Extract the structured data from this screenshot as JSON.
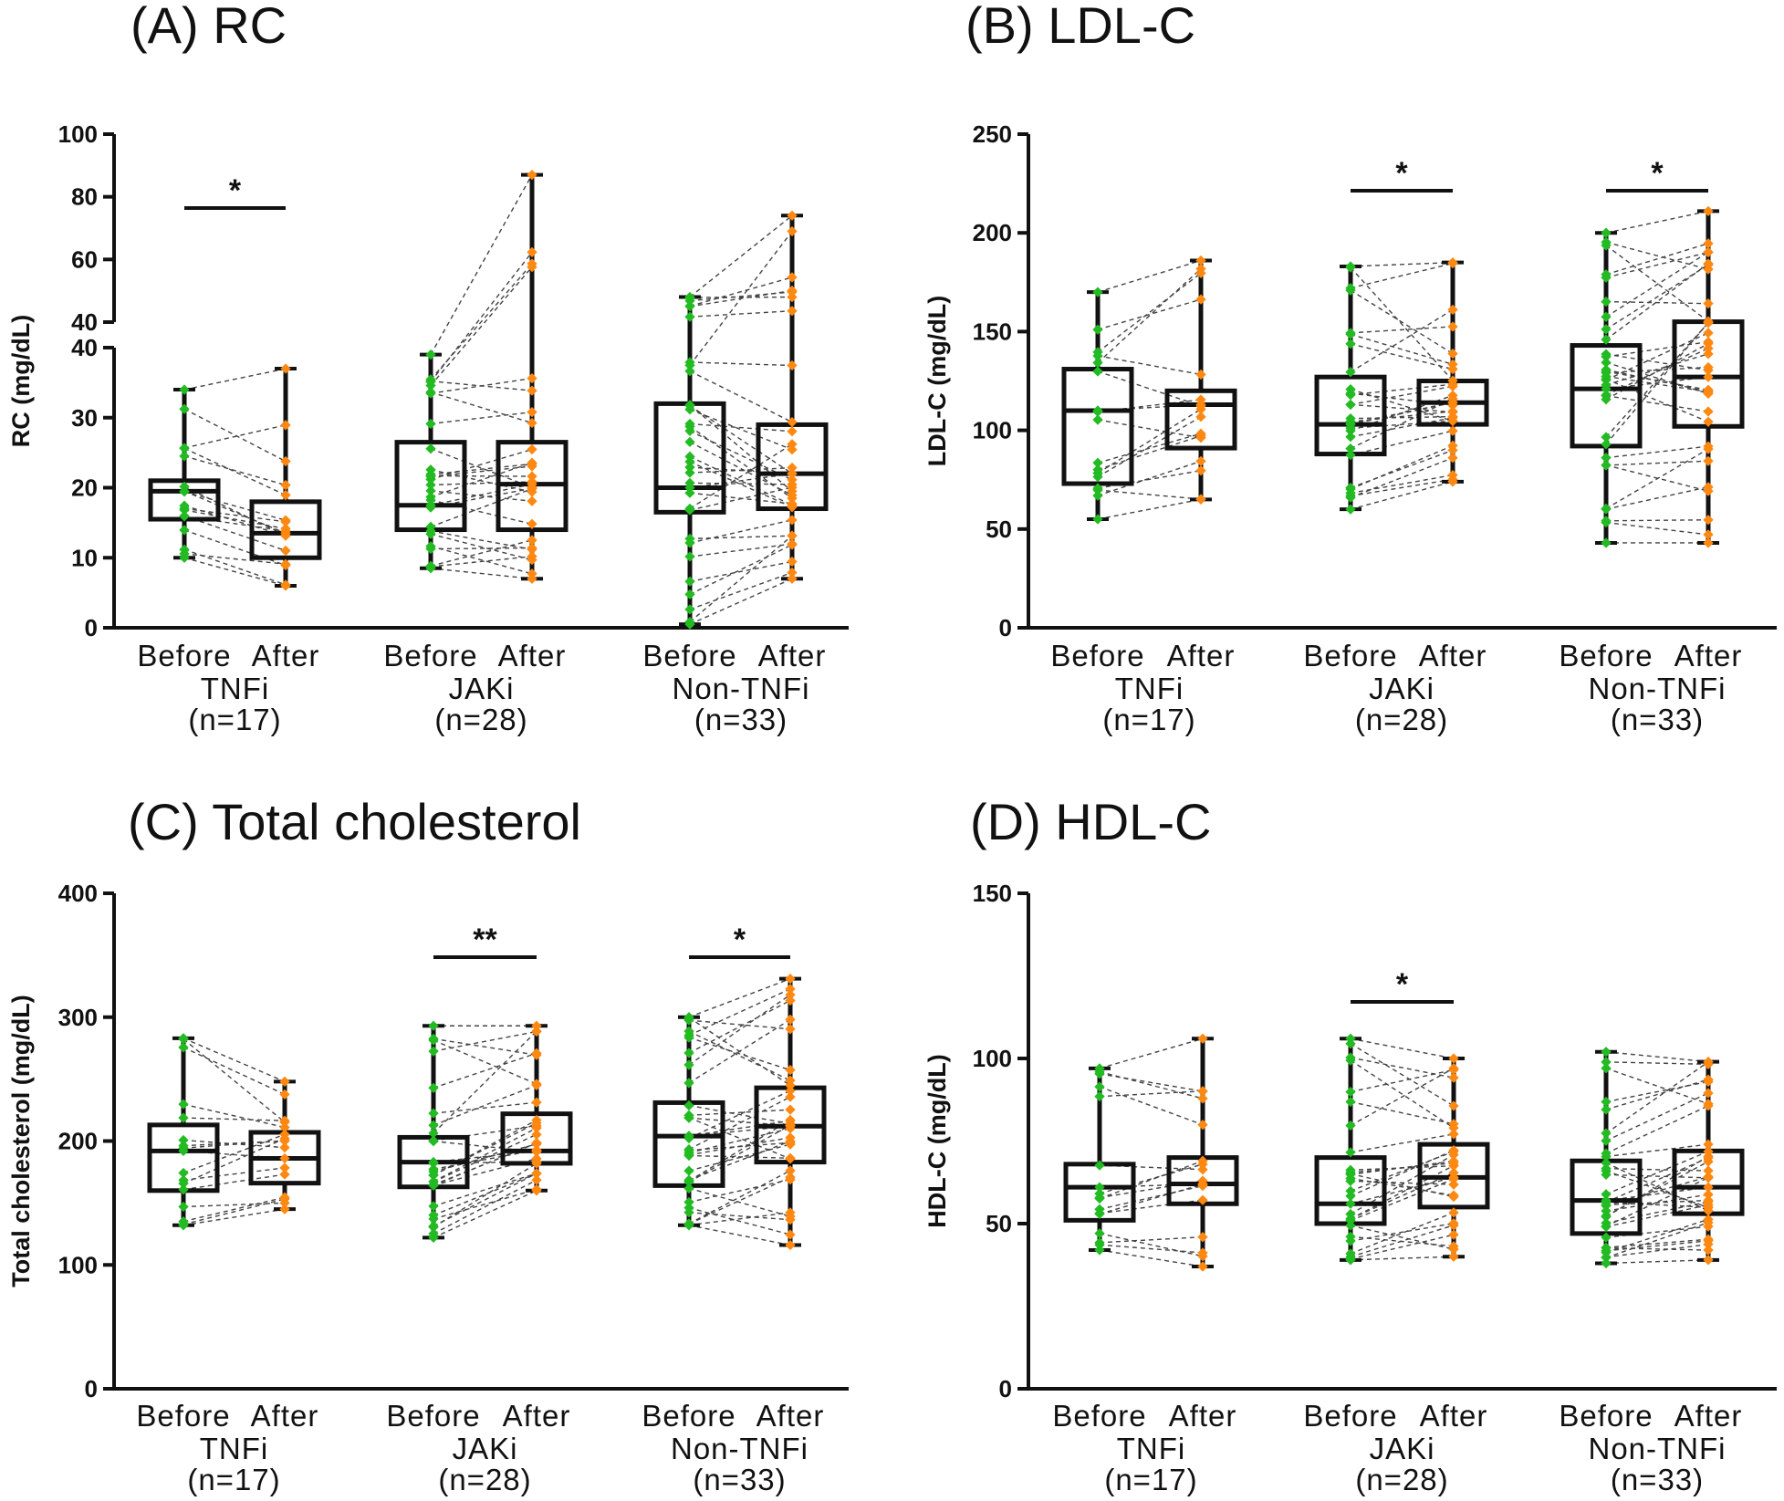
{
  "colors": {
    "before": "#22bb22",
    "after": "#ff8811",
    "box": "#111111",
    "pair_line": "#444444"
  },
  "group_labels": [
    "Before",
    "After"
  ],
  "chart_data": [
    {
      "type": "box",
      "title": "(A) RC",
      "ylabel": "RC (mg/dL)",
      "ylim": [
        0,
        100
      ],
      "y_axis_break": [
        40,
        40
      ],
      "yticks_lower": [
        0,
        10,
        20,
        30,
        40
      ],
      "yticks_upper": [
        40,
        60,
        80,
        100
      ],
      "categories": [
        {
          "drug": "TNFi",
          "n": "(n=17)",
          "before": {
            "min": 10,
            "q1": 15.5,
            "median": 19.5,
            "q3": 21,
            "max": 34
          },
          "after": {
            "min": 6,
            "q1": 10,
            "median": 13.5,
            "q3": 18,
            "max": 37
          },
          "significance": "*"
        },
        {
          "drug": "JAKi",
          "n": "(n=28)",
          "before": {
            "min": 8.5,
            "q1": 14,
            "median": 17.5,
            "q3": 26.5,
            "max": 39
          },
          "after": {
            "min": 7,
            "q1": 14,
            "median": 20.5,
            "q3": 26.5,
            "max": 87
          },
          "significance": ""
        },
        {
          "drug": "Non-TNFi",
          "n": "(n=33)",
          "before": {
            "min": 0.5,
            "q1": 16.5,
            "median": 20,
            "q3": 32,
            "max": 48
          },
          "after": {
            "min": 7,
            "q1": 17,
            "median": 22,
            "q3": 29,
            "max": 74
          },
          "significance": ""
        }
      ]
    },
    {
      "type": "box",
      "title": "(B) LDL-C",
      "ylabel": "LDL-C (mg/dL)",
      "ylim": [
        0,
        250
      ],
      "yticks": [
        0,
        50,
        100,
        150,
        200,
        250
      ],
      "categories": [
        {
          "drug": "TNFi",
          "n": "(n=17)",
          "before": {
            "min": 55,
            "q1": 73,
            "median": 110,
            "q3": 131,
            "max": 170
          },
          "after": {
            "min": 65,
            "q1": 91,
            "median": 113,
            "q3": 120,
            "max": 186
          },
          "significance": ""
        },
        {
          "drug": "JAKi",
          "n": "(n=28)",
          "before": {
            "min": 60,
            "q1": 88,
            "median": 103,
            "q3": 127,
            "max": 183
          },
          "after": {
            "min": 74,
            "q1": 103,
            "median": 114,
            "q3": 125,
            "max": 185
          },
          "significance": "*"
        },
        {
          "drug": "Non-TNFi",
          "n": "(n=33)",
          "before": {
            "min": 43,
            "q1": 92,
            "median": 121,
            "q3": 143,
            "max": 200
          },
          "after": {
            "min": 43,
            "q1": 102,
            "median": 127,
            "q3": 155,
            "max": 211
          },
          "significance": "*"
        }
      ]
    },
    {
      "type": "box",
      "title": "(C) Total cholesterol",
      "ylabel": "Total cholesterol (mg/dL)",
      "ylim": [
        0,
        400
      ],
      "yticks": [
        0,
        100,
        200,
        300,
        400
      ],
      "categories": [
        {
          "drug": "TNFi",
          "n": "(n=17)",
          "before": {
            "min": 132,
            "q1": 160,
            "median": 192,
            "q3": 213,
            "max": 283
          },
          "after": {
            "min": 145,
            "q1": 166,
            "median": 186,
            "q3": 207,
            "max": 248
          },
          "significance": ""
        },
        {
          "drug": "JAKi",
          "n": "(n=28)",
          "before": {
            "min": 122,
            "q1": 163,
            "median": 183,
            "q3": 203,
            "max": 293
          },
          "after": {
            "min": 160,
            "q1": 182,
            "median": 192,
            "q3": 222,
            "max": 293
          },
          "significance": "**"
        },
        {
          "drug": "Non-TNFi",
          "n": "(n=33)",
          "before": {
            "min": 132,
            "q1": 164,
            "median": 204,
            "q3": 231,
            "max": 300
          },
          "after": {
            "min": 116,
            "q1": 183,
            "median": 212,
            "q3": 243,
            "max": 331
          },
          "significance": "*"
        }
      ]
    },
    {
      "type": "box",
      "title": "(D) HDL-C",
      "ylabel": "HDL-C (mg/dL)",
      "ylim": [
        0,
        150
      ],
      "yticks": [
        0,
        50,
        100,
        150
      ],
      "categories": [
        {
          "drug": "TNFi",
          "n": "(n=17)",
          "before": {
            "min": 42,
            "q1": 51,
            "median": 61,
            "q3": 68,
            "max": 97
          },
          "after": {
            "min": 37,
            "q1": 56,
            "median": 62,
            "q3": 70,
            "max": 106
          },
          "significance": ""
        },
        {
          "drug": "JAKi",
          "n": "(n=28)",
          "before": {
            "min": 39,
            "q1": 50,
            "median": 56,
            "q3": 70,
            "max": 106
          },
          "after": {
            "min": 40,
            "q1": 55,
            "median": 64,
            "q3": 74,
            "max": 100
          },
          "significance": "*"
        },
        {
          "drug": "Non-TNFi",
          "n": "(n=33)",
          "before": {
            "min": 38,
            "q1": 47,
            "median": 57,
            "q3": 69,
            "max": 102
          },
          "after": {
            "min": 39,
            "q1": 53,
            "median": 61,
            "q3": 72,
            "max": 99
          },
          "significance": ""
        }
      ]
    }
  ]
}
